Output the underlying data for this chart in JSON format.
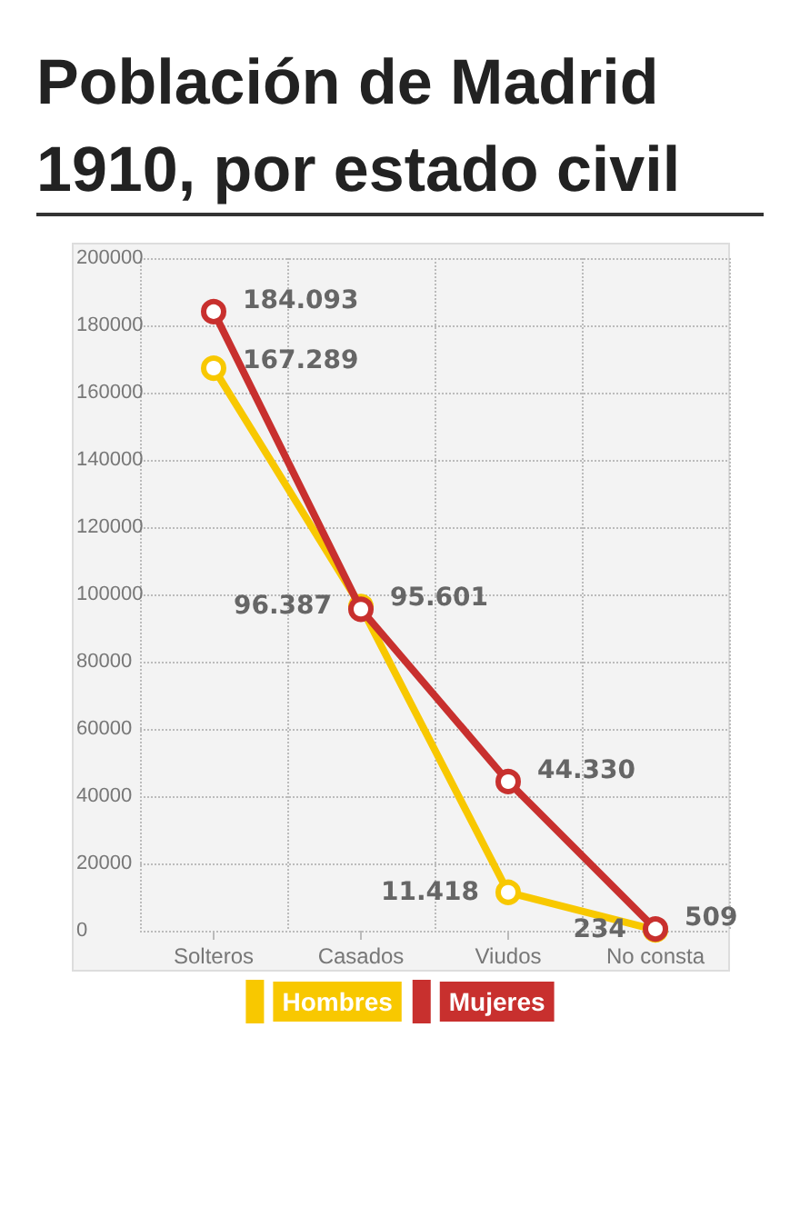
{
  "chart_data": {
    "type": "line",
    "title": "Población de Madrid 1910, por estado civil",
    "categories": [
      "Solteros",
      "Casados",
      "Viudos",
      "No consta"
    ],
    "series": [
      {
        "name": "Hombres",
        "color": "#f8c800",
        "values": [
          167289,
          96387,
          11418,
          234
        ],
        "value_labels": [
          "167.289",
          "96.387",
          "11.418",
          "234"
        ]
      },
      {
        "name": "Mujeres",
        "color": "#c8302e",
        "values": [
          184093,
          95601,
          44330,
          509
        ],
        "value_labels": [
          "184.093",
          "95.601",
          "44.330",
          "509"
        ]
      }
    ],
    "ylim": [
      0,
      200000
    ],
    "yticks": [
      0,
      20000,
      40000,
      60000,
      80000,
      100000,
      120000,
      140000,
      160000,
      180000,
      200000
    ],
    "grid": true,
    "legend": "bottom",
    "marker": "circle",
    "line_style": "solid"
  }
}
